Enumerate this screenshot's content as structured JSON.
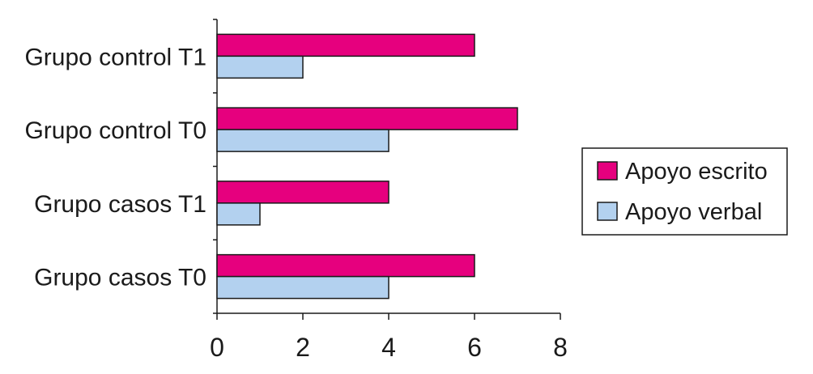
{
  "chart_data": {
    "type": "bar",
    "orientation": "horizontal",
    "categories": [
      "Grupo control T1",
      "Grupo control T0",
      "Grupo casos T1",
      "Grupo casos T0"
    ],
    "series": [
      {
        "name": "Apoyo escrito",
        "color": "#e6007e",
        "values": [
          6,
          7,
          4,
          6
        ]
      },
      {
        "name": "Apoyo verbal",
        "color": "#b3d1ef",
        "values": [
          2,
          4,
          1,
          4
        ]
      }
    ],
    "xlim": [
      0,
      8
    ],
    "xticks": [
      "0",
      "2",
      "4",
      "6",
      "8"
    ],
    "grid": false,
    "legend_position": "right"
  }
}
